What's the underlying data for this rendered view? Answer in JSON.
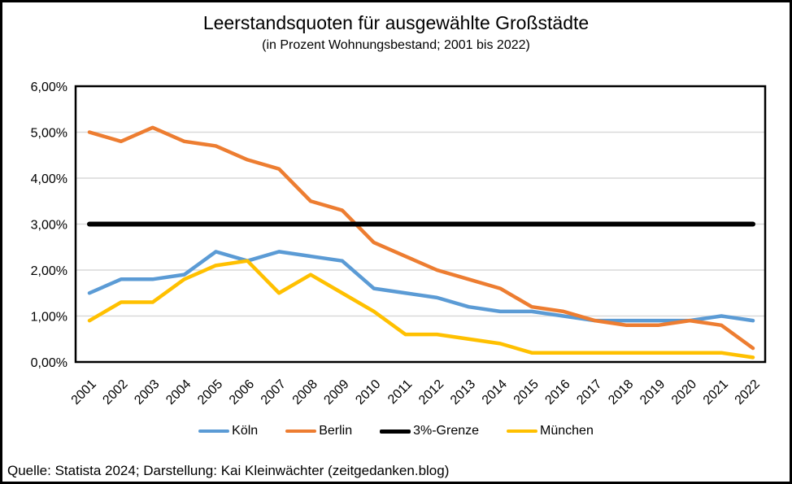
{
  "title": "Leerstandsquoten für ausgewählte Großstädte",
  "subtitle": "(in Prozent Wohnungsbestand; 2001 bis 2022)",
  "footer": "Quelle: Statista 2024; Darstellung: Kai Kleinwächter (zeitgedanken.blog)",
  "colors": {
    "koeln": "#5B9BD5",
    "berlin": "#ED7D31",
    "grenze": "#000000",
    "muenchen": "#FFC000",
    "gridline": "#D9D9D9",
    "axis": "#000000"
  },
  "chart_data": {
    "type": "line",
    "title": "Leerstandsquoten für ausgewählte Großstädte",
    "subtitle": "(in Prozent Wohnungsbestand; 2001 bis 2022)",
    "xlabel": "",
    "ylabel": "",
    "ylim": [
      0,
      6
    ],
    "grid": true,
    "legend_position": "bottom",
    "y_tick_labels": [
      "0,00%",
      "1,00%",
      "2,00%",
      "3,00%",
      "4,00%",
      "5,00%",
      "6,00%"
    ],
    "x": [
      2001,
      2002,
      2003,
      2004,
      2005,
      2006,
      2007,
      2008,
      2009,
      2010,
      2011,
      2012,
      2013,
      2014,
      2015,
      2016,
      2017,
      2018,
      2019,
      2020,
      2021,
      2022
    ],
    "series": [
      {
        "name": "Köln",
        "slug": "koeln",
        "color": "#5B9BD5",
        "stroke_width": 4.5,
        "values": [
          1.5,
          1.8,
          1.8,
          1.9,
          2.4,
          2.2,
          2.4,
          2.3,
          2.2,
          1.6,
          1.5,
          1.4,
          1.2,
          1.1,
          1.1,
          1.0,
          0.9,
          0.9,
          0.9,
          0.9,
          1.0,
          0.9
        ]
      },
      {
        "name": "Berlin",
        "slug": "berlin",
        "color": "#ED7D31",
        "stroke_width": 4.5,
        "values": [
          5.0,
          4.8,
          5.1,
          4.8,
          4.7,
          4.4,
          4.2,
          3.5,
          3.3,
          2.6,
          2.3,
          2.0,
          1.8,
          1.6,
          1.2,
          1.1,
          0.9,
          0.8,
          0.8,
          0.9,
          0.8,
          0.3
        ]
      },
      {
        "name": "3%-Grenze",
        "slug": "grenze",
        "color": "#000000",
        "stroke_width": 6,
        "values": [
          3.0,
          3.0,
          3.0,
          3.0,
          3.0,
          3.0,
          3.0,
          3.0,
          3.0,
          3.0,
          3.0,
          3.0,
          3.0,
          3.0,
          3.0,
          3.0,
          3.0,
          3.0,
          3.0,
          3.0,
          3.0,
          3.0
        ]
      },
      {
        "name": "München",
        "slug": "muenchen",
        "color": "#FFC000",
        "stroke_width": 4.5,
        "values": [
          0.9,
          1.3,
          1.3,
          1.8,
          2.1,
          2.2,
          1.5,
          1.9,
          1.5,
          1.1,
          0.6,
          0.6,
          0.5,
          0.4,
          0.2,
          0.2,
          0.2,
          0.2,
          0.2,
          0.2,
          0.2,
          0.1
        ]
      }
    ]
  }
}
